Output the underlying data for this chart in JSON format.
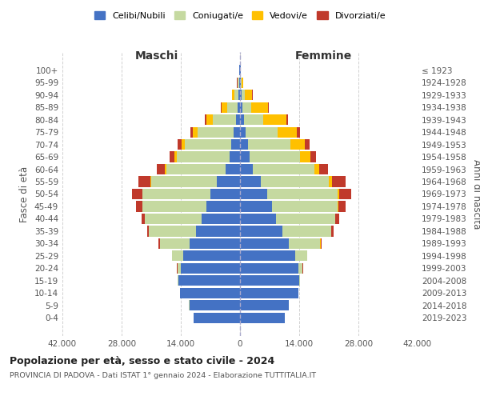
{
  "age_groups": [
    "0-4",
    "5-9",
    "10-14",
    "15-19",
    "20-24",
    "25-29",
    "30-34",
    "35-39",
    "40-44",
    "45-49",
    "50-54",
    "55-59",
    "60-64",
    "65-69",
    "70-74",
    "75-79",
    "80-84",
    "85-89",
    "90-94",
    "95-99",
    "100+"
  ],
  "birth_years": [
    "2019-2023",
    "2014-2018",
    "2009-2013",
    "2004-2008",
    "1999-2003",
    "1994-1998",
    "1989-1993",
    "1984-1988",
    "1979-1983",
    "1974-1978",
    "1969-1973",
    "1964-1968",
    "1959-1963",
    "1954-1958",
    "1949-1953",
    "1944-1948",
    "1939-1943",
    "1934-1938",
    "1929-1933",
    "1924-1928",
    "≤ 1923"
  ],
  "maschi": {
    "celibi": [
      11000,
      12000,
      14200,
      14500,
      14000,
      13500,
      12000,
      10500,
      9000,
      8000,
      7000,
      5500,
      3500,
      2500,
      2000,
      1500,
      1000,
      600,
      400,
      200,
      100
    ],
    "coniugati": [
      30,
      50,
      50,
      200,
      800,
      2500,
      7000,
      11000,
      13500,
      15000,
      16000,
      15500,
      14000,
      12500,
      11000,
      8500,
      5500,
      2500,
      900,
      300,
      50
    ],
    "vedovi": [
      0,
      0,
      0,
      0,
      5,
      5,
      10,
      20,
      30,
      50,
      100,
      150,
      200,
      500,
      800,
      1200,
      1500,
      1200,
      500,
      150,
      20
    ],
    "divorziati": [
      0,
      0,
      0,
      20,
      50,
      100,
      200,
      400,
      800,
      1500,
      2500,
      2800,
      2000,
      1200,
      900,
      600,
      300,
      200,
      100,
      50,
      10
    ]
  },
  "femmine": {
    "nubili": [
      10500,
      11500,
      13800,
      14000,
      13800,
      13000,
      11500,
      10000,
      8500,
      7500,
      6500,
      5000,
      3000,
      2200,
      1900,
      1400,
      900,
      600,
      400,
      200,
      100
    ],
    "coniugate": [
      30,
      50,
      80,
      250,
      1000,
      2800,
      7500,
      11500,
      14000,
      15500,
      16500,
      16000,
      14500,
      12000,
      10000,
      7500,
      4500,
      2000,
      700,
      200,
      50
    ],
    "vedove": [
      0,
      0,
      0,
      0,
      5,
      10,
      20,
      50,
      100,
      200,
      500,
      700,
      1200,
      2500,
      3500,
      4500,
      5500,
      4000,
      1800,
      400,
      30
    ],
    "divorziate": [
      0,
      0,
      0,
      20,
      50,
      100,
      250,
      500,
      900,
      1800,
      2800,
      3200,
      2200,
      1300,
      1000,
      700,
      400,
      250,
      150,
      50,
      10
    ]
  },
  "colors": {
    "celibi": "#4472c4",
    "coniugati": "#c5d9a0",
    "vedovi": "#ffc000",
    "divorziati": "#c0392b"
  },
  "xlim": 42000,
  "xtick_labels": [
    "42.000",
    "28.000",
    "14.000",
    "0",
    "14.000",
    "28.000",
    "42.000"
  ],
  "title": "Popolazione per età, sesso e stato civile - 2024",
  "subtitle": "PROVINCIA DI PADOVA - Dati ISTAT 1° gennaio 2024 - Elaborazione TUTTITALIA.IT",
  "ylabel_left": "Fasce di età",
  "ylabel_right": "Anni di nascita",
  "maschi_label": "Maschi",
  "femmine_label": "Femmine",
  "legend_labels": [
    "Celibi/Nubili",
    "Coniugati/e",
    "Vedovi/e",
    "Divorziati/e"
  ],
  "background_color": "#ffffff",
  "grid_color": "#cccccc"
}
